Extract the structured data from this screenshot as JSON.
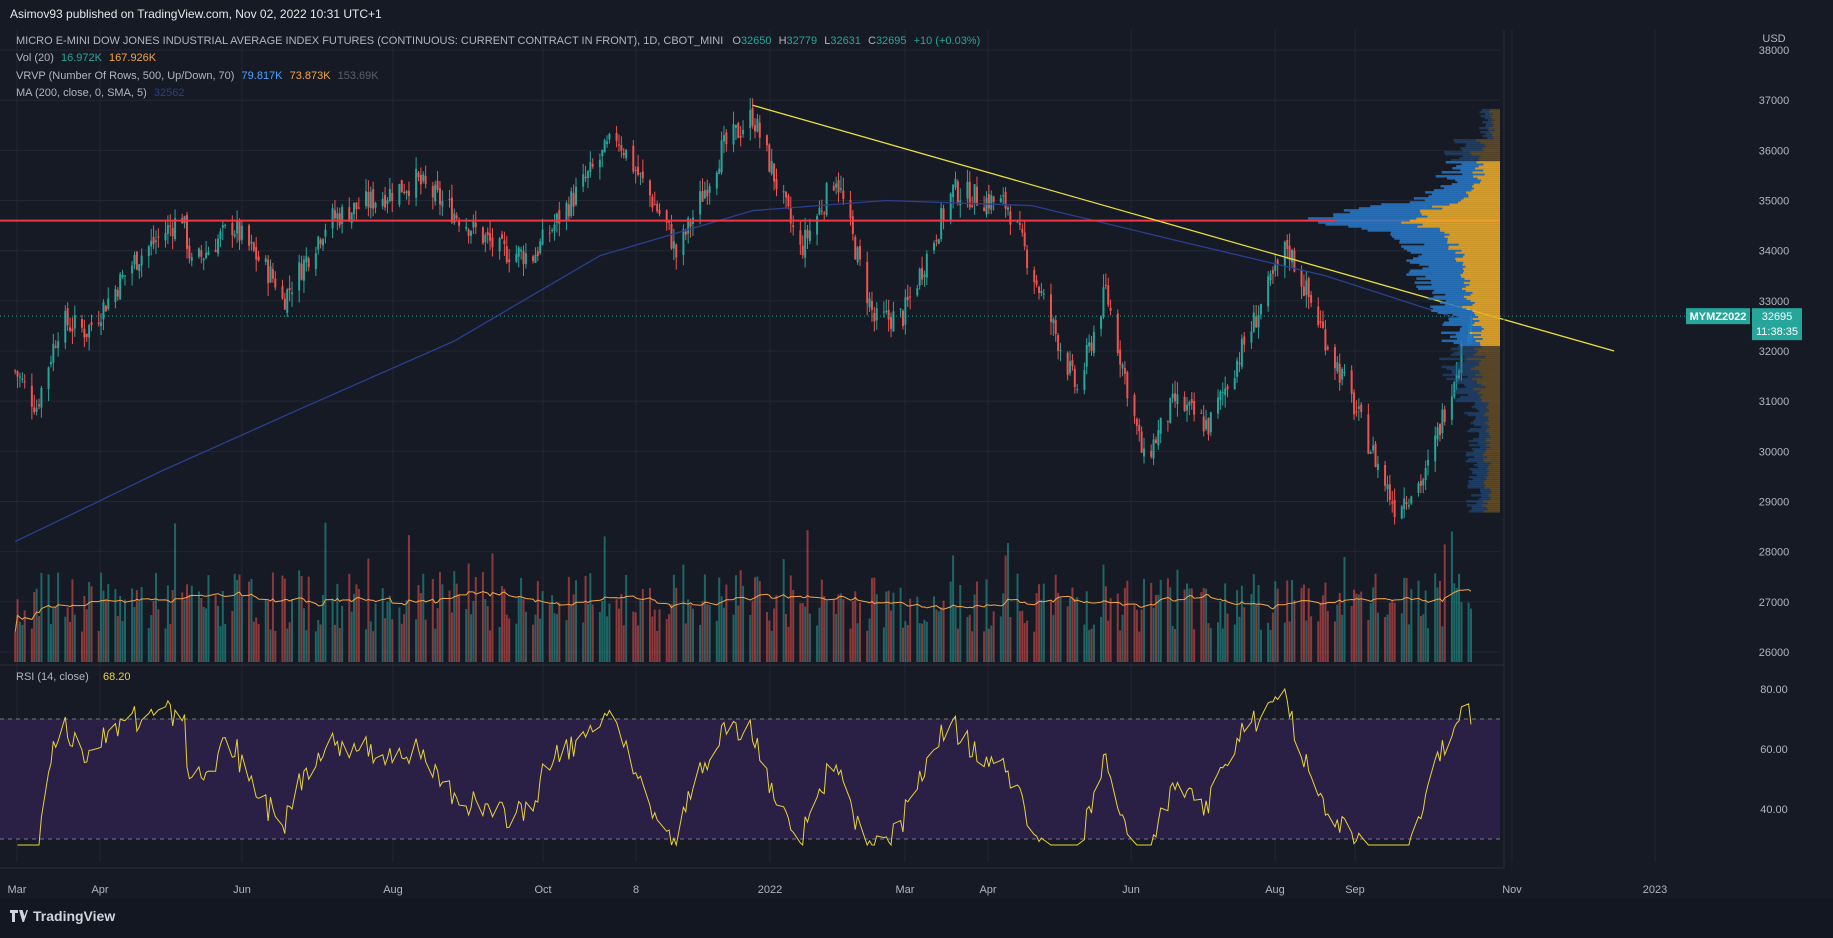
{
  "header": {
    "published_by": "Asimov93 published on TradingView.com, Nov 02, 2022 10:31 UTC+1"
  },
  "legend": {
    "symbol_title": "MICRO E-MINI DOW JONES INDUSTRIAL AVERAGE INDEX FUTURES (CONTINUOUS: CURRENT CONTRACT IN FRONT), 1D, CBOT_MINI",
    "o_label": "O",
    "o_value": "32650",
    "h_label": "H",
    "h_value": "32779",
    "l_label": "L",
    "l_value": "32631",
    "c_label": "C",
    "c_value": "32695",
    "change": "+10 (+0.03%)",
    "vol_label": "Vol (20)",
    "vol_value1": "16.972K",
    "vol_value2": "167.926K",
    "vrvp_label": "VRVP (Number Of Rows, 500, Up/Down, 70)",
    "vrvp_up": "79.817K",
    "vrvp_down": "73.873K",
    "vrvp_total": "153.69K",
    "ma_label": "MA (200, close, 0, SMA, 5)",
    "ma_value": "32562"
  },
  "price_tag": {
    "symbol": "MYMZ2022",
    "price": "32695",
    "countdown": "11:38:35"
  },
  "colors": {
    "background": "#161a25",
    "up": "#26a69a",
    "down": "#ef5350",
    "ma": "#2a3f8f",
    "trendline": "#e7df3a",
    "resistance": "#f23645",
    "rsi": "#e8d23a",
    "rsi_band": "#2a1f44"
  },
  "footer": {
    "brand": "TradingView"
  },
  "chart_data": [
    {
      "type": "candlestick",
      "currency_label": "USD",
      "x_labels": [
        "Mar",
        "Apr",
        "Jun",
        "Aug",
        "Oct",
        "8",
        "2022",
        "Mar",
        "Apr",
        "Jun",
        "Aug",
        "Sep",
        "Nov",
        "2023"
      ],
      "y_ticks": [
        26000,
        27000,
        28000,
        29000,
        30000,
        31000,
        32000,
        33000,
        34000,
        35000,
        36000,
        37000,
        38000
      ],
      "ylim": [
        25800,
        38400
      ],
      "series_close_anchors": [
        {
          "date": "2021-03-01",
          "close": 31600
        },
        {
          "date": "2021-03-10",
          "close": 30900
        },
        {
          "date": "2021-03-20",
          "close": 32600
        },
        {
          "date": "2021-03-31",
          "close": 32400
        },
        {
          "date": "2021-04-20",
          "close": 33800
        },
        {
          "date": "2021-05-10",
          "close": 34700
        },
        {
          "date": "2021-05-14",
          "close": 33700
        },
        {
          "date": "2021-05-31",
          "close": 34500
        },
        {
          "date": "2021-06-18",
          "close": 33400
        },
        {
          "date": "2021-06-21",
          "close": 33000
        },
        {
          "date": "2021-07-10",
          "close": 34600
        },
        {
          "date": "2021-08-16",
          "close": 35400
        },
        {
          "date": "2021-09-20",
          "close": 34000
        },
        {
          "date": "2021-10-04",
          "close": 33900
        },
        {
          "date": "2021-11-08",
          "close": 36300
        },
        {
          "date": "2021-11-30",
          "close": 34400
        },
        {
          "date": "2021-12-03",
          "close": 33900
        },
        {
          "date": "2021-12-22",
          "close": 36000
        },
        {
          "date": "2022-01-04",
          "close": 36700
        },
        {
          "date": "2022-01-24",
          "close": 34000
        },
        {
          "date": "2022-02-08",
          "close": 35500
        },
        {
          "date": "2022-02-24",
          "close": 32600
        },
        {
          "date": "2022-03-08",
          "close": 32700
        },
        {
          "date": "2022-03-29",
          "close": 35200
        },
        {
          "date": "2022-04-21",
          "close": 34900
        },
        {
          "date": "2022-05-20",
          "close": 31200
        },
        {
          "date": "2022-06-01",
          "close": 33200
        },
        {
          "date": "2022-06-17",
          "close": 29800
        },
        {
          "date": "2022-06-30",
          "close": 31000
        },
        {
          "date": "2022-07-14",
          "close": 30500
        },
        {
          "date": "2022-08-16",
          "close": 34100
        },
        {
          "date": "2022-09-13",
          "close": 30900
        },
        {
          "date": "2022-09-30",
          "close": 28900
        },
        {
          "date": "2022-10-13",
          "close": 29500
        },
        {
          "date": "2022-11-01",
          "close": 32695
        }
      ],
      "last_close": 32695,
      "annotations": {
        "horizontal_resistance": 34600,
        "descending_trendline": [
          {
            "date": "2022-01-04",
            "price": 36900
          },
          {
            "date": "2022-12-31",
            "price": 32000
          }
        ],
        "last_price_dotted": 32695
      },
      "moving_average": {
        "name": "MA (200, close, 0, SMA, 5)",
        "points": [
          {
            "date": "2021-03-01",
            "value": 28200
          },
          {
            "date": "2021-05-01",
            "value": 29600
          },
          {
            "date": "2021-07-01",
            "value": 30900
          },
          {
            "date": "2021-09-01",
            "value": 32200
          },
          {
            "date": "2021-11-01",
            "value": 33900
          },
          {
            "date": "2022-01-04",
            "value": 34800
          },
          {
            "date": "2022-03-01",
            "value": 35000
          },
          {
            "date": "2022-05-01",
            "value": 34900
          },
          {
            "date": "2022-07-01",
            "value": 34200
          },
          {
            "date": "2022-09-01",
            "value": 33500
          },
          {
            "date": "2022-11-01",
            "value": 32562
          }
        ]
      }
    },
    {
      "type": "bar",
      "name": "Vol (20)",
      "last_volume": "16.972K",
      "volume_ma": "167.926K"
    },
    {
      "type": "line",
      "name": "RSI (14, close)",
      "rsi_label": "RSI (14, close)",
      "rsi_value": "68.20",
      "y_ticks": [
        "80.00",
        "60.00",
        "40.00"
      ],
      "bands": [
        70,
        30
      ],
      "last": 68.2
    }
  ]
}
